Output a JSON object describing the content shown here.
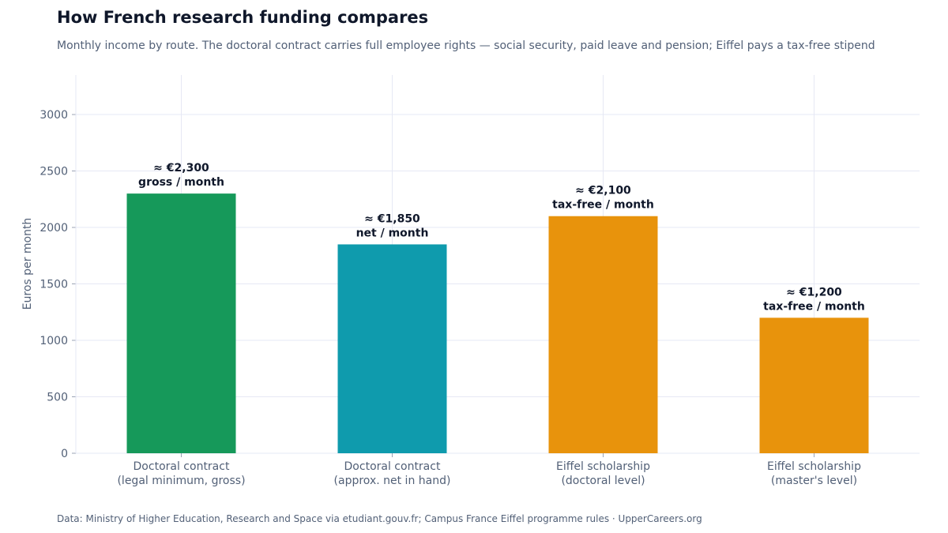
{
  "header": {
    "title": "How French research funding compares",
    "subtitle": "Monthly income by route. The doctoral contract carries full employee rights — social security, paid leave and pension; Eiffel pays a tax-free stipend"
  },
  "footer": {
    "source": "Data: Ministry of Higher Education, Research and Space via etudiant.gouv.fr; Campus France Eiffel programme rules  ·  UpperCareers.org"
  },
  "chart_data": {
    "type": "bar",
    "title": "How French research funding compares",
    "xlabel": "",
    "ylabel": "Euros per month",
    "ylim": [
      0,
      3350
    ],
    "yticks": [
      0,
      500,
      1000,
      1500,
      2000,
      2500,
      3000
    ],
    "grid": true,
    "legend": "none",
    "categories": [
      [
        "Doctoral contract",
        "(legal minimum, gross)"
      ],
      [
        "Doctoral contract",
        "(approx. net in hand)"
      ],
      [
        "Eiffel scholarship",
        "(doctoral level)"
      ],
      [
        "Eiffel scholarship",
        "(master's level)"
      ]
    ],
    "values": [
      2300,
      1850,
      2100,
      1200
    ],
    "data_labels": [
      [
        "≈ €2,300",
        "gross / month"
      ],
      [
        "≈ €1,850",
        "net / month"
      ],
      [
        "≈ €2,100",
        "tax-free / month"
      ],
      [
        "≈ €1,200",
        "tax-free / month"
      ]
    ],
    "colors": [
      "#16995a",
      "#0f9bad",
      "#e8930c",
      "#e8930c"
    ],
    "grid_color": "#e6e8f4",
    "axis_color": "#e6e8f4"
  }
}
